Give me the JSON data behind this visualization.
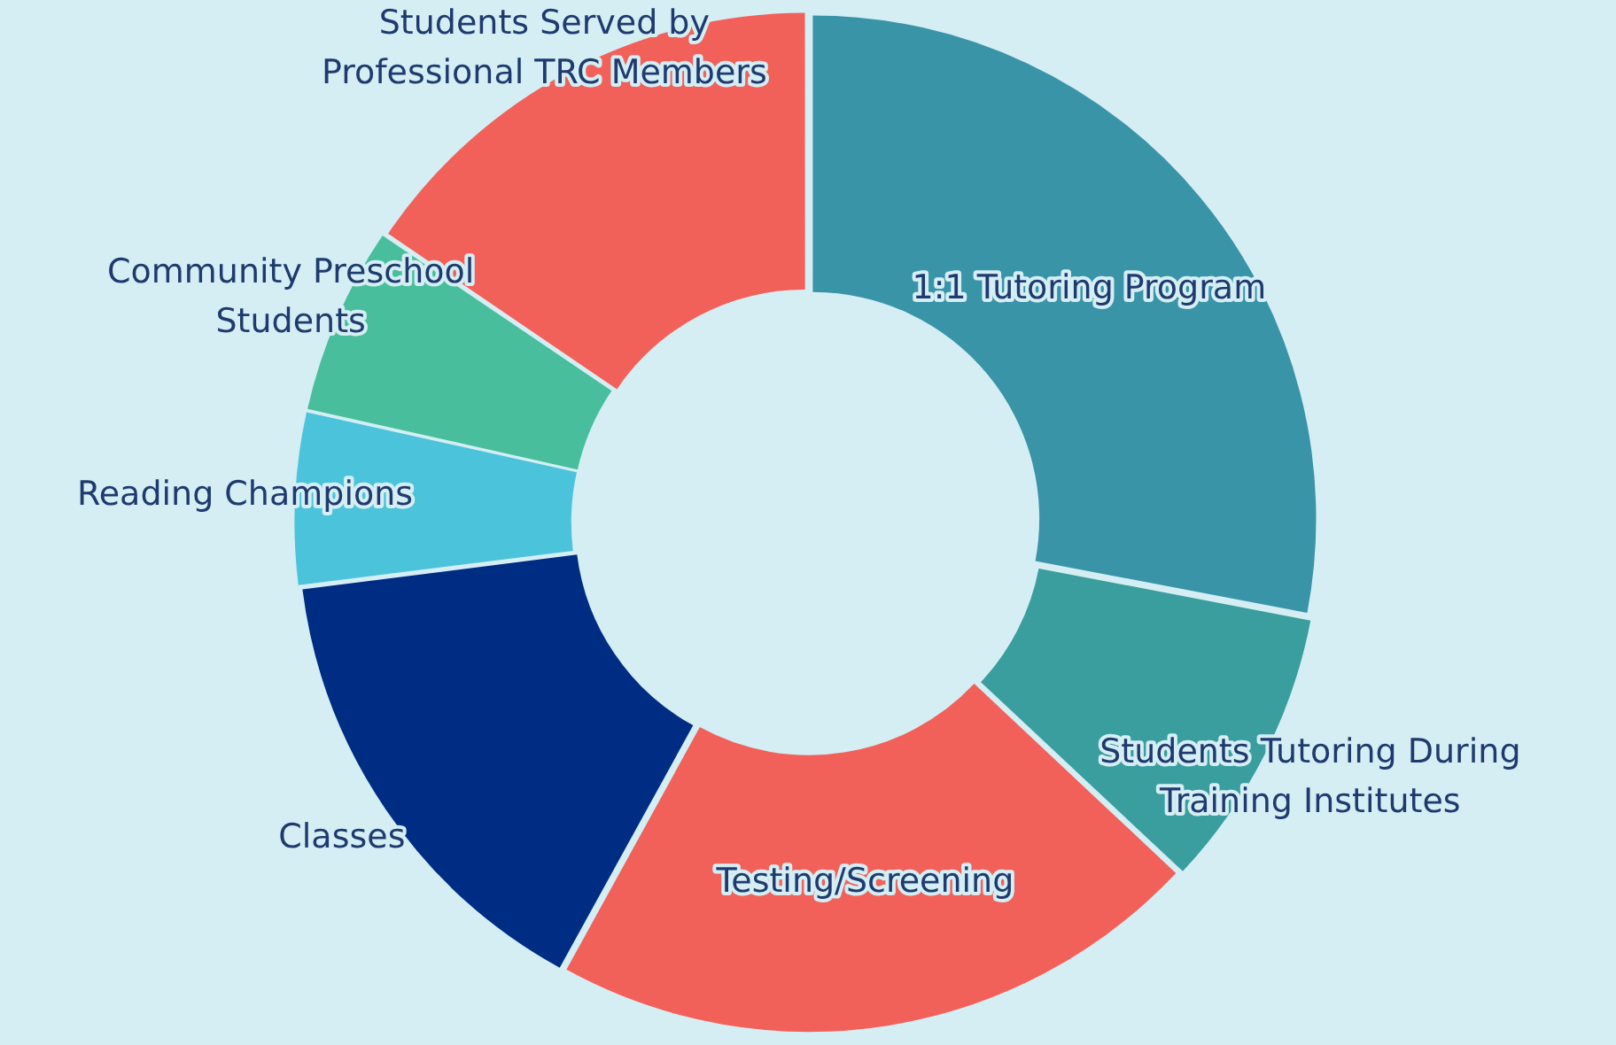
{
  "chart_data": {
    "type": "donut",
    "categories": [
      "1:1 Tutoring Program",
      "Students Tutoring During Training Institutes",
      "Testing/Screening",
      "Classes",
      "Reading Champions",
      "Community Preschool Students",
      "Students Served by Professional TRC Members"
    ],
    "values": [
      28,
      9,
      21,
      15,
      5.5,
      6,
      15.5
    ],
    "colors": [
      "#3a94a8",
      "#3a9e9e",
      "#f2605a",
      "#002d84",
      "#4bc4db",
      "#48be9c",
      "#f2605a"
    ],
    "legend": false
  }
}
